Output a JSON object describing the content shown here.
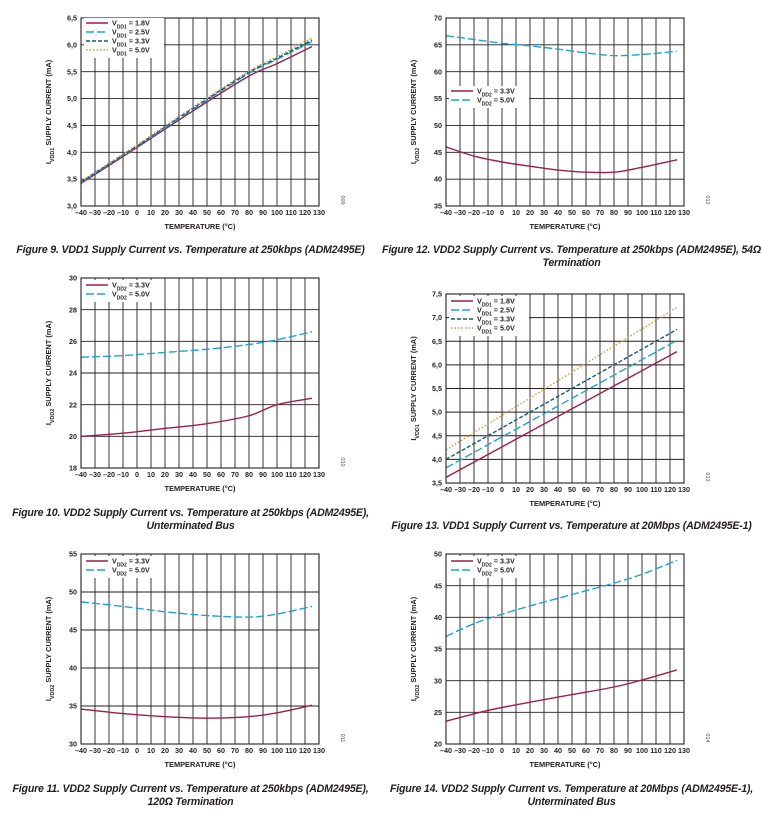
{
  "charts": [
    {
      "fig_id": "009",
      "caption": "Figure 9. VDD1 Supply Current vs. Temperature at 250kbps (ADM2495E)",
      "chart_data": {
        "type": "line",
        "xlabel": "TEMPERATURE (°C)",
        "ylabel": "IVDD1 SUPPLY CURRENT (mA)",
        "xlim": [
          -40,
          130
        ],
        "ylim": [
          3.0,
          6.5
        ],
        "xticks": [
          -40,
          -30,
          -20,
          -10,
          0,
          10,
          20,
          30,
          40,
          50,
          60,
          70,
          80,
          90,
          100,
          110,
          120,
          130
        ],
        "yticks": [
          3.0,
          3.5,
          4.0,
          4.5,
          5.0,
          5.5,
          6.0,
          6.5
        ],
        "ytick_labels": [
          "3,0",
          "3,5",
          "4,0",
          "4,5",
          "5,0",
          "5,5",
          "6,0",
          "6,5"
        ],
        "legend_position": "top-left",
        "series": [
          {
            "name": "VDD1 = 1.8V",
            "sub": "DD1",
            "rest": " = 1.8V",
            "color": "#9e1f45",
            "dash": "none",
            "x": [
              -40,
              0,
              40,
              80,
              100,
              125
            ],
            "y": [
              3.42,
              4.09,
              4.77,
              5.42,
              5.65,
              5.97
            ]
          },
          {
            "name": "VDD1 = 2.5V",
            "sub": "DD1",
            "rest": " = 2.5V",
            "color": "#1ea3d8",
            "dash": "8 3",
            "x": [
              -40,
              0,
              40,
              80,
              100,
              125
            ],
            "y": [
              3.44,
              4.11,
              4.8,
              5.47,
              5.73,
              6.06
            ]
          },
          {
            "name": "VDD1 = 3.3V",
            "sub": "DD1",
            "rest": " = 3.3V",
            "color": "#145a6c",
            "dash": "4 2",
            "x": [
              -40,
              0,
              40,
              80,
              100,
              125
            ],
            "y": [
              3.45,
              4.12,
              4.82,
              5.49,
              5.75,
              6.09
            ]
          },
          {
            "name": "VDD1 = 5.0V",
            "sub": "DD1",
            "rest": " = 5.0V",
            "color": "#cf9a3e",
            "dash": "1.5 2",
            "x": [
              -40,
              0,
              40,
              80,
              100,
              125
            ],
            "y": [
              3.46,
              4.14,
              4.84,
              5.51,
              5.78,
              6.13
            ]
          }
        ]
      }
    },
    {
      "fig_id": "012",
      "caption": "Figure 12. VDD2 Supply Current vs. Temperature at 250kbps (ADM2495E), 54Ω Termination",
      "chart_data": {
        "type": "line",
        "xlabel": "TEMPERATURE (°C)",
        "ylabel": "IVDD2 SUPPLY CURRENT (mA)",
        "xlim": [
          -40,
          130
        ],
        "ylim": [
          35,
          70
        ],
        "xticks": [
          -40,
          -30,
          -20,
          -10,
          0,
          10,
          20,
          30,
          40,
          50,
          60,
          70,
          80,
          90,
          100,
          110,
          120,
          130
        ],
        "yticks": [
          35,
          40,
          45,
          50,
          55,
          60,
          65,
          70
        ],
        "ytick_labels": [
          "35",
          "40",
          "45",
          "50",
          "55",
          "60",
          "65",
          "70"
        ],
        "legend_position": "center-left",
        "series": [
          {
            "name": "VDD2 = 3.3V",
            "sub": "DD2",
            "rest": " = 3.3V",
            "color": "#9e1f45",
            "dash": "none",
            "x": [
              -40,
              -20,
              0,
              20,
              40,
              60,
              80,
              100,
              125
            ],
            "y": [
              46.0,
              44.3,
              43.2,
              42.4,
              41.7,
              41.3,
              41.3,
              42.2,
              43.6
            ]
          },
          {
            "name": "VDD2 = 5.0V",
            "sub": "DD2",
            "rest": " = 5.0V",
            "color": "#1ea3d8",
            "dash": "8 3",
            "x": [
              -40,
              -20,
              0,
              20,
              40,
              60,
              80,
              100,
              125
            ],
            "y": [
              66.7,
              66.0,
              65.3,
              64.8,
              64.2,
              63.5,
              63.0,
              63.2,
              63.8
            ]
          }
        ]
      }
    },
    {
      "fig_id": "010",
      "caption": "Figure 10. VDD2 Supply Current vs. Temperature at 250kbps (ADM2495E), Unterminated Bus",
      "chart_data": {
        "type": "line",
        "xlabel": "TEMPERATURE (°C)",
        "ylabel": "IVDD2 SUPPLY CURRENT (mA)",
        "xlim": [
          -40,
          130
        ],
        "ylim": [
          18,
          30
        ],
        "xticks": [
          -40,
          -30,
          -20,
          -10,
          0,
          10,
          20,
          30,
          40,
          50,
          60,
          70,
          80,
          90,
          100,
          110,
          120,
          130
        ],
        "yticks": [
          18,
          20,
          22,
          24,
          26,
          28,
          30
        ],
        "ytick_labels": [
          "18",
          "20",
          "22",
          "24",
          "26",
          "28",
          "30"
        ],
        "legend_position": "top-left",
        "series": [
          {
            "name": "VDD2 = 3.3V",
            "sub": "DD2",
            "rest": " = 3.3V",
            "color": "#9e1f45",
            "dash": "none",
            "x": [
              -40,
              -10,
              20,
              50,
              80,
              100,
              125
            ],
            "y": [
              20.0,
              20.2,
              20.5,
              20.8,
              21.3,
              22.0,
              22.4
            ]
          },
          {
            "name": "VDD2 = 5.0V",
            "sub": "DD2",
            "rest": " = 5.0V",
            "color": "#1ea3d8",
            "dash": "8 3",
            "x": [
              -40,
              -10,
              20,
              50,
              80,
              100,
              125
            ],
            "y": [
              25.0,
              25.1,
              25.3,
              25.5,
              25.8,
              26.1,
              26.6
            ]
          }
        ]
      }
    },
    {
      "fig_id": "013",
      "caption": "Figure 13. VDD1 Supply Current vs. Temperature at 20Mbps (ADM2495E-1)",
      "chart_data": {
        "type": "line",
        "xlabel": "TEMPERATURE (°C)",
        "ylabel": "IVDD1 SUPPLY CURRENT (mA)",
        "xlim": [
          -40,
          130
        ],
        "ylim": [
          3.5,
          7.5
        ],
        "xticks": [
          -40,
          -30,
          -20,
          -10,
          0,
          10,
          20,
          30,
          40,
          50,
          60,
          70,
          80,
          90,
          100,
          110,
          120,
          130
        ],
        "yticks": [
          3.5,
          4.0,
          4.5,
          5.0,
          5.5,
          6.0,
          6.5,
          7.0,
          7.5
        ],
        "ytick_labels": [
          "3,5",
          "4,0",
          "4,5",
          "5,0",
          "5,5",
          "6,0",
          "6,5",
          "7,0",
          "7,5"
        ],
        "legend_position": "top-left",
        "series": [
          {
            "name": "VDD1 = 1.8V",
            "sub": "DD1",
            "rest": " = 1.8V",
            "color": "#9e1f45",
            "dash": "none",
            "x": [
              -40,
              125
            ],
            "y": [
              3.62,
              6.28
            ]
          },
          {
            "name": "VDD1 = 2.5V",
            "sub": "DD1",
            "rest": " = 2.5V",
            "color": "#1ea3d8",
            "dash": "8 3",
            "x": [
              -40,
              125
            ],
            "y": [
              3.82,
              6.52
            ]
          },
          {
            "name": "VDD1 = 3.3V",
            "sub": "DD1",
            "rest": " = 3.3V",
            "color": "#145a6c",
            "dash": "4 2",
            "x": [
              -40,
              125
            ],
            "y": [
              4.0,
              6.75
            ]
          },
          {
            "name": "VDD1 = 5.0V",
            "sub": "DD1",
            "rest": " = 5.0V",
            "color": "#cf9a3e",
            "dash": "1.5 2",
            "x": [
              -40,
              125
            ],
            "y": [
              4.2,
              7.22
            ]
          }
        ]
      }
    },
    {
      "fig_id": "011",
      "caption": "Figure 11. VDD2 Supply Current vs. Temperature at 250kbps (ADM2495E), 120Ω Termination",
      "chart_data": {
        "type": "line",
        "xlabel": "TEMPERATURE (°C)",
        "ylabel": "IVDD2 SUPPLY CURRENT (mA)",
        "xlim": [
          -40,
          130
        ],
        "ylim": [
          30,
          55
        ],
        "xticks": [
          -40,
          -30,
          -20,
          -10,
          0,
          10,
          20,
          30,
          40,
          50,
          60,
          70,
          80,
          90,
          100,
          110,
          120,
          130
        ],
        "yticks": [
          30,
          35,
          40,
          45,
          50,
          55
        ],
        "ytick_labels": [
          "30",
          "35",
          "40",
          "45",
          "50",
          "55"
        ],
        "legend_position": "top-left",
        "series": [
          {
            "name": "VDD2 = 3.3V",
            "sub": "DD2",
            "rest": " = 3.3V",
            "color": "#9e1f45",
            "dash": "none",
            "x": [
              -40,
              -10,
              20,
              50,
              80,
              100,
              125
            ],
            "y": [
              34.6,
              34.0,
              33.6,
              33.4,
              33.6,
              34.1,
              35.1
            ]
          },
          {
            "name": "VDD2 = 5.0V",
            "sub": "DD2",
            "rest": " = 5.0V",
            "color": "#1ea3d8",
            "dash": "8 3",
            "x": [
              -40,
              -10,
              20,
              50,
              80,
              100,
              125
            ],
            "y": [
              48.7,
              48.1,
              47.4,
              46.9,
              46.7,
              47.1,
              48.1
            ]
          }
        ]
      }
    },
    {
      "fig_id": "014",
      "caption": "Figure 14. VDD2 Supply Current vs. Temperature at 20Mbps (ADM2495E-1), Unterminated Bus",
      "chart_data": {
        "type": "line",
        "xlabel": "TEMPERATURE (°C)",
        "ylabel": "IVDD2 SUPPLY CURRENT (mA)",
        "xlim": [
          -40,
          130
        ],
        "ylim": [
          20,
          50
        ],
        "xticks": [
          -40,
          -30,
          -20,
          -10,
          0,
          10,
          20,
          30,
          40,
          50,
          60,
          70,
          80,
          90,
          100,
          110,
          120,
          130
        ],
        "yticks": [
          20,
          25,
          30,
          35,
          40,
          45,
          50
        ],
        "ytick_labels": [
          "20",
          "25",
          "30",
          "35",
          "40",
          "45",
          "50"
        ],
        "legend_position": "top-left",
        "series": [
          {
            "name": "VDD2 = 3.3V",
            "sub": "DD2",
            "rest": " = 3.3V",
            "color": "#9e1f45",
            "dash": "none",
            "x": [
              -40,
              -10,
              20,
              50,
              80,
              100,
              125
            ],
            "y": [
              23.6,
              25.3,
              26.6,
              27.8,
              29.0,
              30.1,
              31.7
            ]
          },
          {
            "name": "VDD2 = 5.0V",
            "sub": "DD2",
            "rest": " = 5.0V",
            "color": "#1ea3d8",
            "dash": "8 3",
            "x": [
              -40,
              -20,
              0,
              20,
              40,
              60,
              80,
              100,
              125
            ],
            "y": [
              37.0,
              39.0,
              40.5,
              41.8,
              43.0,
              44.2,
              45.4,
              46.8,
              49.0
            ]
          }
        ]
      }
    }
  ]
}
